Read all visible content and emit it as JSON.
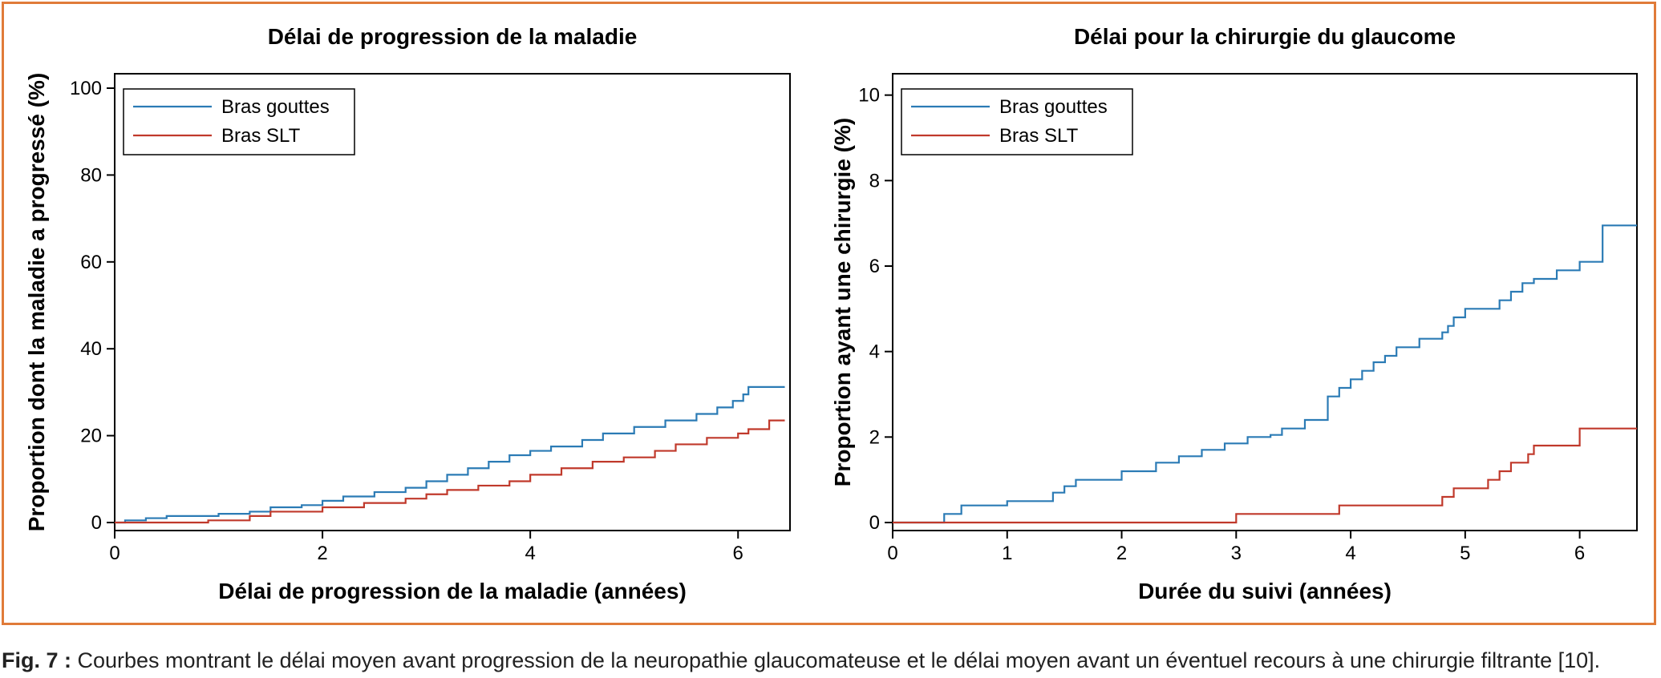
{
  "colors": {
    "border": "#e07b39",
    "series_gouttes": "#2b7bb5",
    "series_slt": "#c0392b"
  },
  "caption": {
    "label": "Fig. 7 :",
    "text": " Courbes montrant le délai moyen avant progression de la neuropathie glaucomateuse et le délai moyen avant un éventuel recours à une chirurgie filtrante [10]."
  },
  "chart_data": [
    {
      "type": "line",
      "step": true,
      "title": "Délai de progression de la maladie",
      "xlabel": "Délai de progression de la maladie (années)",
      "ylabel": "Proportion dont la maladie a progressé (%)",
      "xlim": [
        0,
        6.5
      ],
      "ylim": [
        0,
        100
      ],
      "xticks": [
        0,
        2,
        4,
        6
      ],
      "yticks": [
        0,
        20,
        40,
        60,
        80,
        100
      ],
      "legend_position": "top-left",
      "grid": false,
      "series": [
        {
          "name": "Bras gouttes",
          "color": "#2b7bb5",
          "x": [
            0,
            0.1,
            0.3,
            0.5,
            1.0,
            1.3,
            1.5,
            1.8,
            2.0,
            2.2,
            2.5,
            2.8,
            3.0,
            3.2,
            3.4,
            3.6,
            3.8,
            4.0,
            4.2,
            4.5,
            4.7,
            5.0,
            5.3,
            5.6,
            5.8,
            5.95,
            6.05,
            6.1,
            6.45
          ],
          "y": [
            0,
            0.5,
            1.0,
            1.5,
            2.0,
            2.5,
            3.5,
            4.0,
            5.0,
            6.0,
            7.0,
            8.0,
            9.5,
            11.0,
            12.5,
            14.0,
            15.5,
            16.5,
            17.5,
            19.0,
            20.5,
            22.0,
            23.5,
            25.0,
            26.5,
            28.0,
            29.5,
            31.2,
            31.2
          ]
        },
        {
          "name": "Bras SLT",
          "color": "#c0392b",
          "x": [
            0,
            0.9,
            1.3,
            1.5,
            2.0,
            2.4,
            2.8,
            3.0,
            3.2,
            3.5,
            3.8,
            4.0,
            4.3,
            4.6,
            4.9,
            5.2,
            5.4,
            5.7,
            6.0,
            6.1,
            6.3,
            6.45
          ],
          "y": [
            0,
            0.5,
            1.5,
            2.5,
            3.5,
            4.5,
            5.5,
            6.5,
            7.5,
            8.5,
            9.5,
            11.0,
            12.5,
            14.0,
            15.0,
            16.5,
            18.0,
            19.5,
            20.5,
            21.5,
            23.5,
            23.5
          ]
        }
      ]
    },
    {
      "type": "line",
      "step": true,
      "title": "Délai pour la chirurgie du glaucome",
      "xlabel": "Durée du suivi (années)",
      "ylabel": "Proportion ayant une chirurgie (%)",
      "xlim": [
        0,
        6.5
      ],
      "ylim": [
        0,
        10.5
      ],
      "xticks": [
        0,
        1,
        2,
        3,
        4,
        5,
        6
      ],
      "yticks": [
        0,
        2,
        4,
        6,
        8,
        10
      ],
      "legend_position": "top-left",
      "grid": false,
      "series": [
        {
          "name": "Bras gouttes",
          "color": "#2b7bb5",
          "x": [
            0,
            0.45,
            0.6,
            1.0,
            1.4,
            1.5,
            1.6,
            2.0,
            2.3,
            2.5,
            2.7,
            2.9,
            3.1,
            3.3,
            3.4,
            3.6,
            3.8,
            3.9,
            4.0,
            4.1,
            4.2,
            4.3,
            4.4,
            4.6,
            4.8,
            4.85,
            4.9,
            5.0,
            5.3,
            5.4,
            5.5,
            5.6,
            5.8,
            6.0,
            6.2,
            6.5
          ],
          "y": [
            0,
            0.2,
            0.4,
            0.5,
            0.7,
            0.85,
            1.0,
            1.2,
            1.4,
            1.55,
            1.7,
            1.85,
            2.0,
            2.05,
            2.2,
            2.4,
            2.95,
            3.15,
            3.35,
            3.55,
            3.75,
            3.9,
            4.1,
            4.3,
            4.45,
            4.6,
            4.8,
            5.0,
            5.2,
            5.4,
            5.6,
            5.7,
            5.9,
            6.1,
            6.95,
            6.95
          ]
        },
        {
          "name": "Bras SLT",
          "color": "#c0392b",
          "x": [
            0,
            3.0,
            3.9,
            4.8,
            4.9,
            5.2,
            5.3,
            5.4,
            5.55,
            5.6,
            6.0,
            6.5
          ],
          "y": [
            0,
            0.2,
            0.4,
            0.6,
            0.8,
            1.0,
            1.2,
            1.4,
            1.6,
            1.8,
            2.2,
            2.2
          ]
        }
      ]
    }
  ]
}
